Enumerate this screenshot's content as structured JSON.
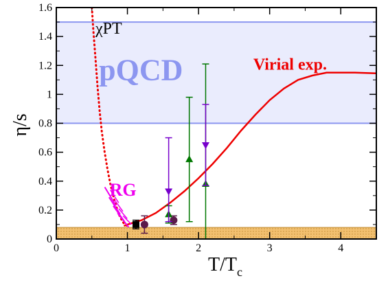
{
  "chart_data": {
    "type": "line",
    "title": "",
    "xlabel": "T/T",
    "xlabel_sub": "c",
    "ylabel": "η/s",
    "xlim": [
      0,
      4.5
    ],
    "ylim": [
      0,
      1.6
    ],
    "xticks": [
      0,
      1,
      2,
      3,
      4
    ],
    "yticks": [
      0,
      0.2,
      0.4,
      0.6,
      0.8,
      1,
      1.2,
      1.4,
      1.6
    ],
    "xtick_labels": [
      "0",
      "1",
      "2",
      "3",
      "4"
    ],
    "ytick_labels": [
      "0",
      "0.2",
      "0.4",
      "0.6",
      "0.8",
      "1",
      "1.2",
      "1.4",
      "1.6"
    ],
    "kss_bound": 0.08,
    "bands": [
      {
        "label": "pQCD",
        "y_from": 0.8,
        "y_to": 1.5,
        "color": "#8c96f0",
        "label_pos": [
          0.6,
          1.1
        ]
      }
    ],
    "annotations": [
      {
        "text": "χPT",
        "x": 0.55,
        "y": 1.42,
        "color": "#ee0000"
      },
      {
        "text": "Virial exp.",
        "x": 2.77,
        "y": 1.17,
        "color": "#ee0000"
      },
      {
        "text": "RG",
        "x": 0.75,
        "y": 0.3,
        "color": "#ee00ee"
      }
    ],
    "series": [
      {
        "style": "dotted",
        "color": "#ee0000",
        "x": [
          0.5,
          0.52,
          0.55,
          0.58,
          0.61,
          0.64,
          0.68,
          0.72,
          0.76,
          0.8,
          0.84,
          0.88,
          0.92,
          0.96,
          1.0
        ],
        "y": [
          1.6,
          1.45,
          1.25,
          1.05,
          0.88,
          0.74,
          0.6,
          0.48,
          0.38,
          0.3,
          0.23,
          0.17,
          0.13,
          0.1,
          0.09
        ]
      },
      {
        "style": "solid",
        "color": "#ee0000",
        "x": [
          0.95,
          1.0,
          1.2,
          1.4,
          1.6,
          1.8,
          2.0,
          2.2,
          2.4,
          2.6,
          2.8,
          3.0,
          3.2,
          3.4,
          3.6,
          3.8,
          4.0,
          4.2,
          4.5
        ],
        "y": [
          0.09,
          0.1,
          0.13,
          0.18,
          0.25,
          0.33,
          0.42,
          0.52,
          0.63,
          0.75,
          0.86,
          0.96,
          1.04,
          1.1,
          1.13,
          1.15,
          1.15,
          1.15,
          1.145
        ]
      },
      {
        "style": "hatch",
        "color": "#ee00ee",
        "x": [
          0.72,
          0.78,
          0.84,
          0.9,
          0.96
        ],
        "y": [
          0.33,
          0.26,
          0.2,
          0.15,
          0.11
        ]
      }
    ],
    "points": [
      {
        "x": 1.12,
        "y": 0.1,
        "err": 0.03,
        "marker": "square",
        "color": "#000000"
      },
      {
        "x": 1.24,
        "y": 0.1,
        "err": 0.06,
        "marker": "circle",
        "color": "#5a1a4a"
      },
      {
        "x": 1.65,
        "y": 0.13,
        "err": 0.03,
        "marker": "circle",
        "color": "#5a1a4a"
      },
      {
        "x": 1.58,
        "y": 0.17,
        "err": 0.06,
        "marker": "triangle-up",
        "color": "#007700"
      },
      {
        "x": 1.58,
        "y": 0.33,
        "err_low": 0.21,
        "err_high": 0.37,
        "marker": "triangle-down",
        "color": "#7700cc"
      },
      {
        "x": 1.87,
        "y": 0.55,
        "err": 0.43,
        "marker": "triangle-up",
        "color": "#007700"
      },
      {
        "x": 2.1,
        "y": 0.38,
        "err_low": 0.38,
        "err_high": 0.83,
        "marker": "triangle-up",
        "color": "#007700"
      },
      {
        "x": 2.1,
        "y": 0.65,
        "err": 0.28,
        "marker": "triangle-down",
        "color": "#7700cc"
      }
    ],
    "grid": false,
    "legend": "none"
  }
}
